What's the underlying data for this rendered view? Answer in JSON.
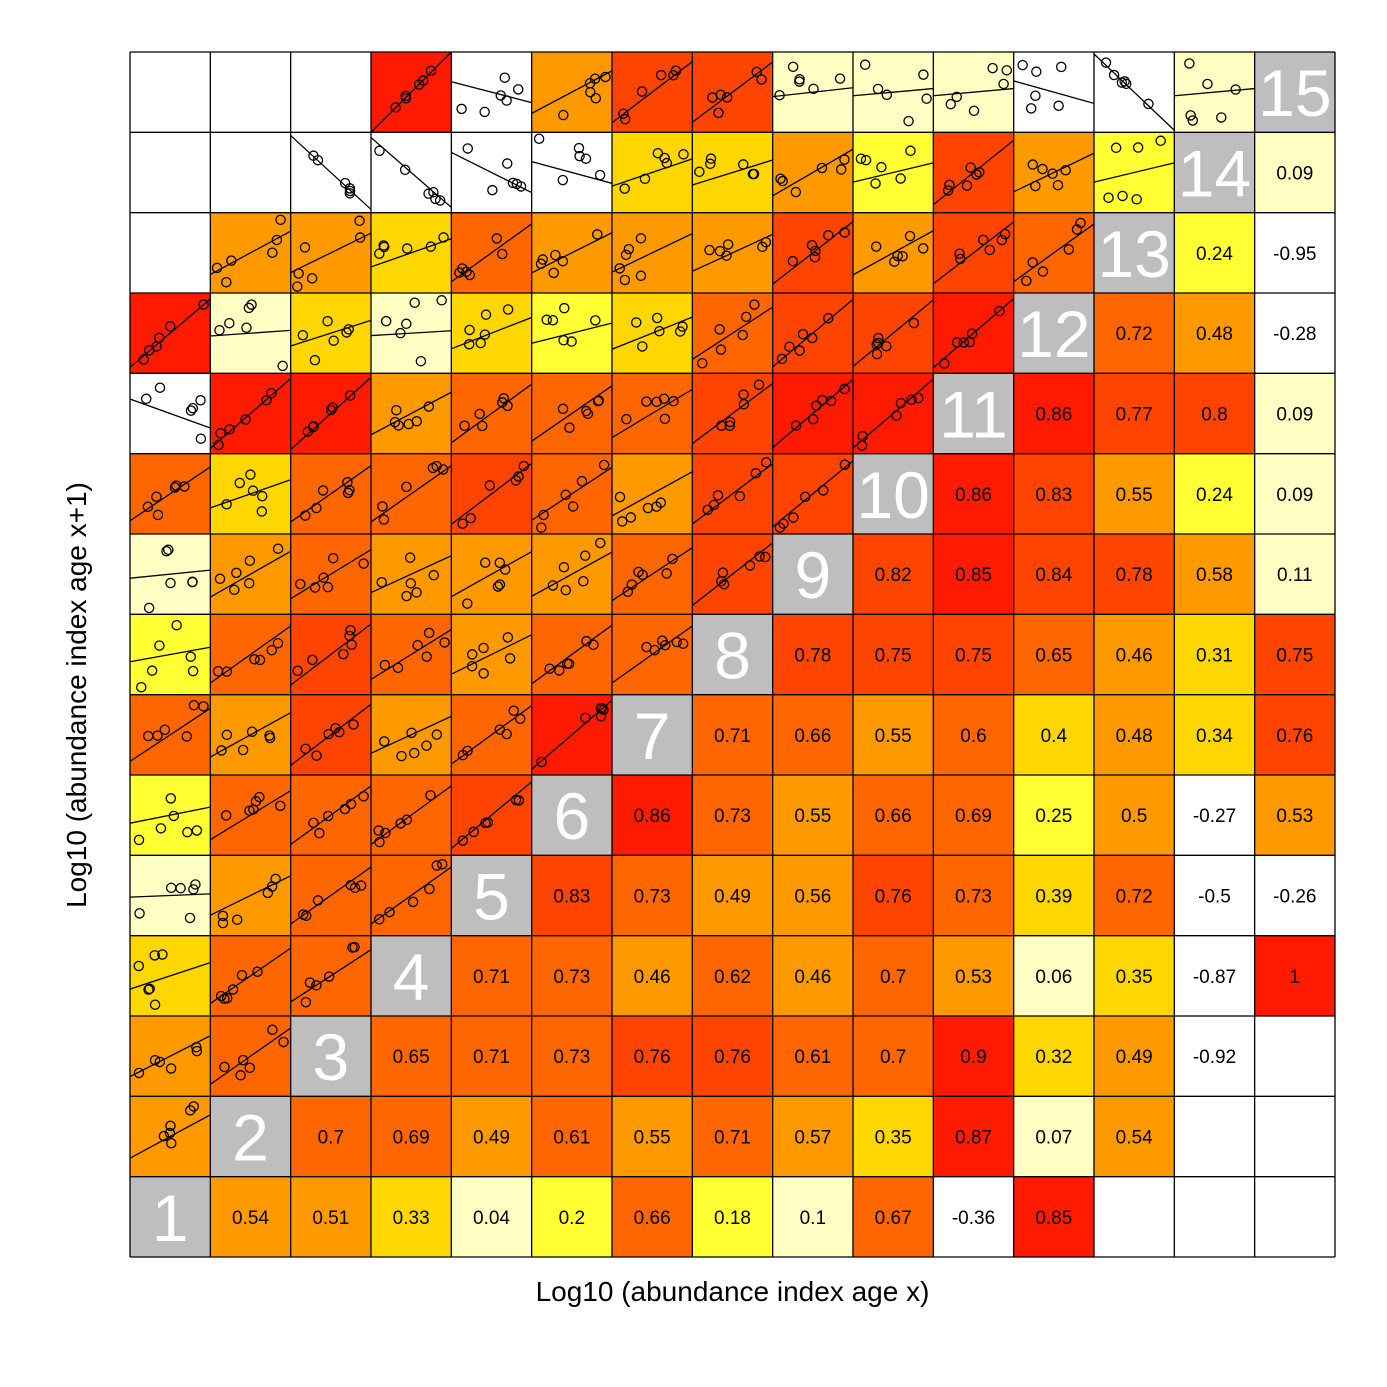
{
  "chart_data": {
    "type": "heatmap",
    "title": "",
    "xlabel": "Log10 (abundance index age x)",
    "ylabel": "Log10 (abundance index age x+1)",
    "ages": [
      "1",
      "2",
      "3",
      "4",
      "5",
      "6",
      "7",
      "8",
      "9",
      "10",
      "11",
      "12",
      "13",
      "14",
      "15"
    ],
    "diagonal_color": "#BEBEBE",
    "color_scale": [
      {
        "from": -1.0,
        "to": 0.0,
        "color": "#FFFFFF"
      },
      {
        "from": 0.0,
        "to": 0.15,
        "color": "#FFFFC4"
      },
      {
        "from": 0.15,
        "to": 0.3,
        "color": "#FFFF33"
      },
      {
        "from": 0.3,
        "to": 0.45,
        "color": "#FFD700"
      },
      {
        "from": 0.45,
        "to": 0.6,
        "color": "#FF9900"
      },
      {
        "from": 0.6,
        "to": 0.75,
        "color": "#FF6600"
      },
      {
        "from": 0.75,
        "to": 0.85,
        "color": "#FF4400"
      },
      {
        "from": 0.85,
        "to": 1.01,
        "color": "#FF1A00"
      }
    ],
    "correlations": [
      [
        null,
        0.54,
        0.51,
        0.33,
        0.04,
        0.2,
        0.66,
        0.18,
        0.1,
        0.67,
        -0.36,
        0.85,
        null,
        null,
        null
      ],
      [
        null,
        null,
        0.7,
        0.69,
        0.49,
        0.61,
        0.55,
        0.71,
        0.57,
        0.35,
        0.87,
        0.07,
        0.54,
        null,
        null
      ],
      [
        null,
        null,
        null,
        0.65,
        0.71,
        0.73,
        0.76,
        0.76,
        0.61,
        0.7,
        0.9,
        0.32,
        0.49,
        -0.92,
        null
      ],
      [
        null,
        null,
        null,
        null,
        0.71,
        0.73,
        0.46,
        0.62,
        0.46,
        0.7,
        0.53,
        0.06,
        0.35,
        -0.87,
        1
      ],
      [
        null,
        null,
        null,
        null,
        null,
        0.83,
        0.73,
        0.49,
        0.56,
        0.76,
        0.73,
        0.39,
        0.72,
        -0.5,
        -0.26
      ],
      [
        null,
        null,
        null,
        null,
        null,
        null,
        0.86,
        0.73,
        0.55,
        0.66,
        0.69,
        0.25,
        0.5,
        -0.27,
        0.53
      ],
      [
        null,
        null,
        null,
        null,
        null,
        null,
        null,
        0.71,
        0.66,
        0.55,
        0.6,
        0.4,
        0.48,
        0.34,
        0.76
      ],
      [
        null,
        null,
        null,
        null,
        null,
        null,
        null,
        null,
        0.78,
        0.75,
        0.75,
        0.65,
        0.46,
        0.31,
        0.75
      ],
      [
        null,
        null,
        null,
        null,
        null,
        null,
        null,
        null,
        null,
        0.82,
        0.85,
        0.84,
        0.78,
        0.58,
        0.11
      ],
      [
        null,
        null,
        null,
        null,
        null,
        null,
        null,
        null,
        null,
        null,
        0.86,
        0.83,
        0.55,
        0.24,
        0.09
      ],
      [
        null,
        null,
        null,
        null,
        null,
        null,
        null,
        null,
        null,
        null,
        null,
        0.86,
        0.77,
        0.8,
        0.09
      ],
      [
        null,
        null,
        null,
        null,
        null,
        null,
        null,
        null,
        null,
        null,
        null,
        null,
        0.72,
        0.48,
        -0.28
      ],
      [
        null,
        null,
        null,
        null,
        null,
        null,
        null,
        null,
        null,
        null,
        null,
        null,
        null,
        0.24,
        -0.95
      ],
      [
        null,
        null,
        null,
        null,
        null,
        null,
        null,
        null,
        null,
        null,
        null,
        null,
        null,
        null,
        0.09
      ],
      [
        null,
        null,
        null,
        null,
        null,
        null,
        null,
        null,
        null,
        null,
        null,
        null,
        null,
        null,
        null
      ]
    ],
    "notes": "Upper triangle: printed correlation for pair (row age, column age). Lower triangle: small scatterplots with fitted lines, cell shaded by the same correlation scale; blank cells have no data."
  }
}
